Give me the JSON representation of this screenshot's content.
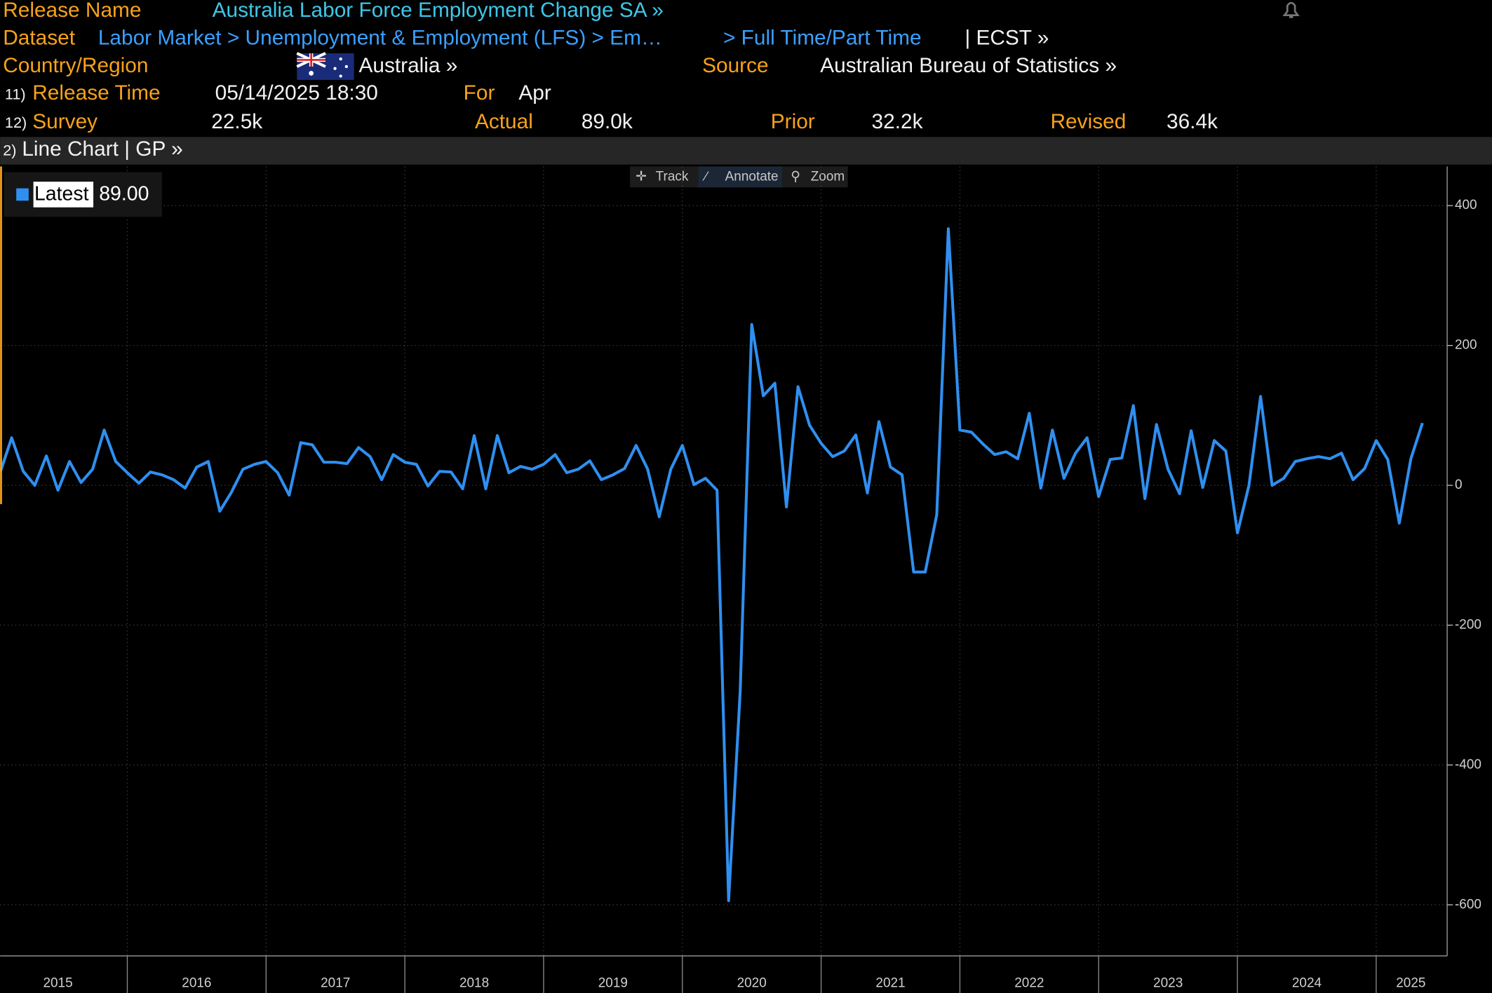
{
  "header": {
    "release_name": {
      "label": "Release Name",
      "value": "Australia Labor Force Employment Change SA »"
    },
    "dataset": {
      "label": "Dataset",
      "path": "Labor Market > Unemployment & Employment (LFS) > Em…",
      "subpath": "> Full Time/Part Time",
      "ticker": "| ECST »"
    },
    "country": {
      "label": "Country/Region",
      "value": "Australia »"
    },
    "source": {
      "label": "Source",
      "value": "Australian Bureau of Statistics »"
    },
    "release_time": {
      "number": "11)",
      "label": "Release Time",
      "value": "05/14/2025 18:30"
    },
    "period": {
      "label": "For",
      "value": "Apr"
    },
    "survey": {
      "number": "12)",
      "label": "Survey",
      "value": "22.5k"
    },
    "actual": {
      "label": "Actual",
      "value": "89.0k"
    },
    "prior": {
      "label": "Prior",
      "value": "32.2k"
    },
    "revised": {
      "label": "Revised",
      "value": "36.4k"
    }
  },
  "panel": {
    "number": "2)",
    "title": "Line Chart | GP »"
  },
  "toolbar": [
    "Track",
    "Annotate",
    "Zoom"
  ],
  "chart_data": {
    "type": "line",
    "categories": [
      null,
      null,
      null,
      null,
      null,
      "2015",
      null,
      null,
      null,
      null,
      null,
      null,
      null,
      null,
      null,
      null,
      null,
      "2016",
      null,
      null,
      null,
      null,
      null,
      null,
      null,
      null,
      null,
      null,
      null,
      "2017",
      null,
      null,
      null,
      null,
      null,
      null,
      null,
      null,
      null,
      null,
      null,
      "2018",
      null,
      null,
      null,
      null,
      null,
      null,
      null,
      null,
      null,
      null,
      null,
      "2019",
      null,
      null,
      null,
      null,
      null,
      null,
      null,
      null,
      null,
      null,
      null,
      "2020",
      null,
      null,
      null,
      null,
      null,
      null,
      null,
      null,
      null,
      null,
      null,
      "2021",
      null,
      null,
      null,
      null,
      null,
      null,
      null,
      null,
      null,
      null,
      null,
      "2022",
      null,
      null,
      null,
      null,
      null,
      null,
      null,
      null,
      null,
      null,
      null,
      "2023",
      null,
      null,
      null,
      null,
      null,
      null,
      null,
      null,
      null,
      null,
      null,
      "2024",
      null,
      null,
      null,
      null,
      null,
      null,
      null,
      null,
      "2025",
      null
    ],
    "series": [
      {
        "name": "Latest",
        "color": "#2f8ff0",
        "values": [
          18,
          68,
          20,
          0,
          42,
          -7,
          34,
          4,
          23,
          79,
          34,
          18,
          3,
          19,
          15,
          8,
          -4,
          26,
          34,
          -37,
          -10,
          23,
          30,
          34,
          18,
          -14,
          61,
          58,
          33,
          33,
          31,
          54,
          41,
          8,
          44,
          33,
          30,
          -1,
          20,
          19,
          -5,
          71,
          -5,
          71,
          18,
          27,
          23,
          30,
          44,
          18,
          23,
          35,
          8,
          15,
          24,
          57,
          23,
          -45,
          23,
          57,
          1,
          10,
          -7,
          -594,
          -295,
          230,
          128,
          146,
          -31,
          141,
          86,
          60,
          41,
          49,
          72,
          -11,
          91,
          26,
          15,
          -124,
          -124,
          -42,
          367,
          79,
          76,
          59,
          44,
          48,
          38,
          103,
          -4,
          79,
          10,
          46,
          68,
          -16,
          37,
          39,
          114,
          -19,
          87,
          23,
          -12,
          78,
          -3,
          64,
          49,
          -68,
          0,
          127,
          0,
          10,
          34,
          38,
          41,
          38,
          46,
          8,
          24,
          64,
          37,
          -54,
          38,
          89
        ]
      }
    ],
    "latest_label": "89.00",
    "ylim": [
      -673,
      456
    ],
    "yticks": [
      400,
      200,
      0,
      -200,
      -400,
      -600
    ],
    "grid": true
  }
}
